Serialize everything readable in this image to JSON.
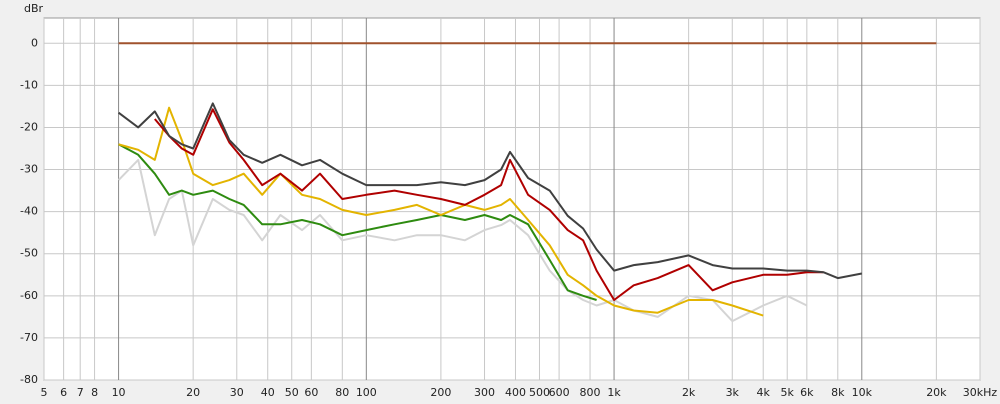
{
  "chart_data": {
    "type": "line",
    "y_label": "dBr",
    "log_x": true,
    "grid": true,
    "xlim": [
      5,
      30000
    ],
    "ylim": [
      -80,
      6
    ],
    "yticks": [
      0,
      -10,
      -20,
      -30,
      -40,
      -50,
      -60,
      -70,
      -80
    ],
    "xticks": [
      5,
      6,
      7,
      8,
      10,
      20,
      30,
      40,
      50,
      60,
      80,
      100,
      200,
      300,
      400,
      500,
      600,
      800,
      {
        "value": 1000,
        "label": "1k"
      },
      {
        "value": 2000,
        "label": "2k"
      },
      {
        "value": 3000,
        "label": "3k"
      },
      {
        "value": 4000,
        "label": "4k"
      },
      {
        "value": 5000,
        "label": "5k"
      },
      {
        "value": 6000,
        "label": "6k"
      },
      {
        "value": 8000,
        "label": "8k"
      },
      {
        "value": 10000,
        "label": "10k"
      },
      {
        "value": 20000,
        "label": "20k"
      },
      {
        "value": 30000,
        "label": "30kHz"
      }
    ],
    "x": [
      10,
      12,
      14,
      16,
      18,
      20,
      24,
      28,
      32,
      38,
      45,
      55,
      65,
      80,
      100,
      130,
      160,
      200,
      250,
      300,
      350,
      380,
      450,
      550,
      650,
      750,
      850,
      1000,
      1200,
      1500,
      2000,
      2500,
      3000,
      4000,
      5000,
      6000,
      7000,
      8000,
      10000,
      20000
    ],
    "series": [
      {
        "color": "#d4d4d4",
        "values": [
          -32.5,
          -27.7,
          -45.6,
          -37,
          -35,
          -48,
          -37,
          -39.6,
          -40.8,
          -46.8,
          -40.8,
          -44.4,
          -40.8,
          -46.8,
          -45.6,
          -46.8,
          -45.6,
          -45.6,
          -46.8,
          -44.4,
          -43.2,
          -42,
          -45.6,
          -54,
          -58.7,
          -61,
          -62.3,
          -61,
          -63.5,
          -65,
          -60,
          -61,
          -66,
          -62.3,
          -60,
          -62.3,
          null,
          null,
          null,
          null
        ]
      },
      {
        "color": "#2e8b10",
        "values": [
          -24,
          -26.5,
          -31,
          -36,
          -35,
          -36,
          -35,
          -37,
          -38.4,
          -43,
          -43,
          -42,
          -43,
          -45.6,
          -44.4,
          -43,
          -42,
          -40.8,
          -42,
          -40.8,
          -42,
          -40.8,
          -43,
          -51.5,
          -58.7,
          -60,
          -61,
          null,
          null,
          null,
          null,
          null,
          null,
          null,
          null,
          null,
          null,
          null,
          null,
          null
        ]
      },
      {
        "color": "#e3b400",
        "values": [
          -24,
          -25.3,
          -27.7,
          -15.3,
          -23,
          -31,
          -33.7,
          -32.5,
          -31,
          -36,
          -31,
          -36,
          -37,
          -39.6,
          -40.8,
          -39.6,
          -38.4,
          -40.8,
          -38.4,
          -39.6,
          -38.4,
          -37,
          -42,
          -48,
          -55,
          -57.5,
          -60,
          -62.3,
          -63.5,
          -64,
          -61,
          -61,
          -62.3,
          -64.7,
          null,
          null,
          null,
          null,
          null,
          null
        ]
      },
      {
        "color": "#b00000",
        "values": [
          null,
          null,
          -18,
          -22,
          -25,
          -26.5,
          -15.7,
          -23.6,
          -27.7,
          -33.7,
          -31,
          -35,
          -31,
          -37,
          -36,
          -35,
          -36,
          -37,
          -38.4,
          -36,
          -33.7,
          -27.7,
          -36,
          -39.6,
          -44.4,
          -46.8,
          -54,
          -61,
          -57.5,
          -55.8,
          -52.7,
          -58.7,
          -56.8,
          -55,
          -55,
          -54.4,
          -54.4,
          null,
          null,
          null
        ]
      },
      {
        "color": "#404040",
        "values": [
          -16.5,
          -20,
          -16.2,
          -22,
          -24,
          -25,
          -14.3,
          -23,
          -26.5,
          -28.4,
          -26.5,
          -29,
          -27.7,
          -31,
          -33.7,
          -33.7,
          -33.7,
          -33,
          -33.7,
          -32.5,
          -30,
          -25.8,
          -32,
          -35,
          -41,
          -44,
          -49,
          -54,
          -52.7,
          -52,
          -50.4,
          -52.7,
          -53.5,
          -53.5,
          -54,
          -54,
          -54.4,
          -55.8,
          -54.7,
          null
        ]
      },
      {
        "color": "#a0522d",
        "values": [
          0,
          0,
          0,
          0,
          0,
          0,
          0,
          0,
          0,
          0,
          0,
          0,
          0,
          0,
          0,
          0,
          0,
          0,
          0,
          0,
          0,
          0,
          0,
          0,
          0,
          0,
          0,
          0,
          0,
          0,
          0,
          0,
          0,
          0,
          0,
          0,
          0,
          0,
          0,
          0
        ]
      }
    ]
  }
}
